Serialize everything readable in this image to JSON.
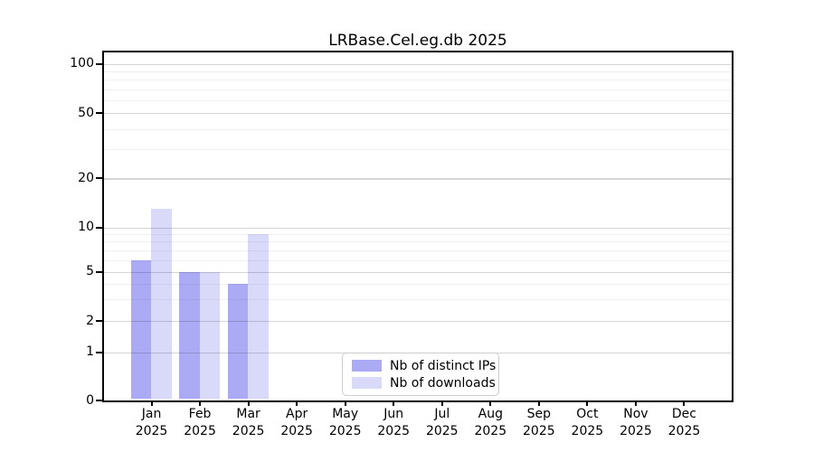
{
  "title": "LRBase.Cel.eg.db 2025",
  "chart_data": {
    "type": "bar",
    "title": "LRBase.Cel.eg.db 2025",
    "x": {
      "categories": [
        "Jan",
        "Feb",
        "Mar",
        "Apr",
        "May",
        "Jun",
        "Jul",
        "Aug",
        "Sep",
        "Oct",
        "Nov",
        "Dec"
      ],
      "year": "2025"
    },
    "series": [
      {
        "key": "distinct-ips",
        "name": "Nb of distinct IPs",
        "color": "#aaaaf5",
        "values": [
          6,
          5,
          4,
          0,
          0,
          0,
          0,
          0,
          0,
          0,
          0,
          0
        ]
      },
      {
        "key": "downloads",
        "name": "Nb of downloads",
        "color": "#d9d9fa",
        "values": [
          13,
          5,
          9,
          0,
          0,
          0,
          0,
          0,
          0,
          0,
          0,
          0
        ]
      }
    ],
    "yaxis": {
      "major_ticks": [
        0,
        1,
        2,
        5,
        10,
        20,
        50,
        100
      ],
      "minor_ticks": [
        3,
        4,
        6,
        7,
        8,
        9,
        30,
        40,
        60,
        70,
        80,
        90
      ],
      "scale": "log-like",
      "range": [
        0,
        100
      ]
    },
    "legend": {
      "position": "lower-center"
    },
    "grid": "on"
  }
}
